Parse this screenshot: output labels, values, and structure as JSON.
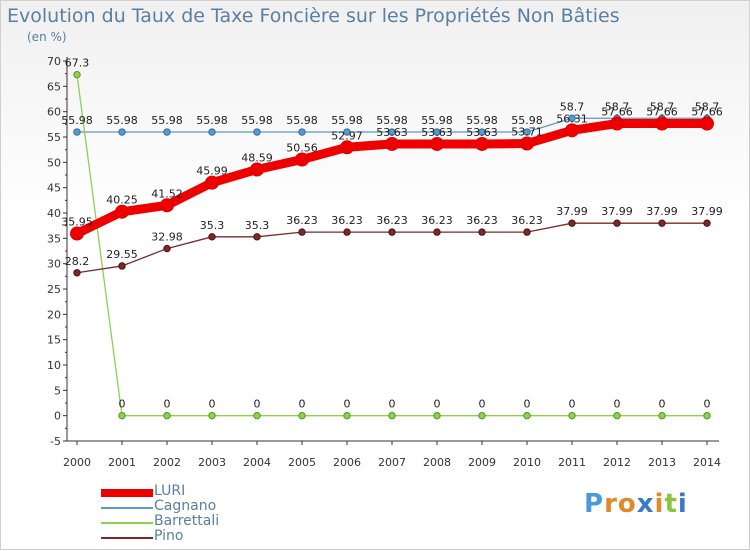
{
  "chart_data": {
    "type": "line",
    "title": "Evolution du Taux de Taxe Foncière sur les Propriétés Non Bâties",
    "ylabel": "(en %)",
    "xlabel": "",
    "ylim": [
      -5,
      70
    ],
    "yticks": [
      -5,
      0,
      5,
      10,
      15,
      20,
      25,
      30,
      35,
      40,
      45,
      50,
      55,
      60,
      65,
      70
    ],
    "ytick_labels": [
      "-5",
      "0",
      "5",
      "10",
      "15",
      "20",
      "25",
      "30",
      "35",
      "40",
      "45",
      "50",
      "55",
      "60",
      "65",
      "70"
    ],
    "categories": [
      "2000",
      "2001",
      "2002",
      "2003",
      "2004",
      "2005",
      "2006",
      "2007",
      "2008",
      "2009",
      "2010",
      "2011",
      "2012",
      "2013",
      "2014"
    ],
    "grid": false,
    "legend_position": "bottom-left",
    "series": [
      {
        "name": "LURI",
        "color": "#ee0000",
        "values": [
          35.95,
          40.25,
          41.52,
          45.99,
          48.59,
          50.56,
          52.97,
          53.63,
          53.63,
          53.63,
          53.71,
          56.31,
          57.66,
          57.66,
          57.66
        ],
        "labels": [
          "35.95",
          "40.25",
          "41.52",
          "45.99",
          "48.59",
          "50.56",
          "52.97",
          "53.63",
          "53.63",
          "53.63",
          "53.71",
          "56.31",
          "57.66",
          "57.66",
          "57.66"
        ]
      },
      {
        "name": "Cagnano",
        "color": "#5b9ac8",
        "values": [
          55.98,
          55.98,
          55.98,
          55.98,
          55.98,
          55.98,
          55.98,
          55.98,
          55.98,
          55.98,
          55.98,
          58.7,
          58.7,
          58.7,
          58.7
        ],
        "labels": [
          "55.98",
          "55.98",
          "55.98",
          "55.98",
          "55.98",
          "55.98",
          "55.98",
          "55.98",
          "55.98",
          "55.98",
          "55.98",
          "58.7",
          "58.7",
          "58.7",
          "58.7"
        ]
      },
      {
        "name": "Barrettali",
        "color": "#8fd14f",
        "values": [
          67.3,
          0,
          0,
          0,
          0,
          0,
          0,
          0,
          0,
          0,
          0,
          0,
          0,
          0,
          0
        ],
        "labels": [
          "67.3",
          "0",
          "0",
          "0",
          "0",
          "0",
          "0",
          "0",
          "0",
          "0",
          "0",
          "0",
          "0",
          "0",
          "0"
        ]
      },
      {
        "name": "Pino",
        "color": "#7a2a2a",
        "values": [
          28.2,
          29.55,
          32.98,
          35.3,
          35.3,
          36.23,
          36.23,
          36.23,
          36.23,
          36.23,
          36.23,
          37.99,
          37.99,
          37.99,
          37.99
        ],
        "labels": [
          "28.2",
          "29.55",
          "32.98",
          "35.3",
          "35.3",
          "36.23",
          "36.23",
          "36.23",
          "36.23",
          "36.23",
          "36.23",
          "37.99",
          "37.99",
          "37.99",
          "37.99"
        ]
      }
    ]
  },
  "brand": {
    "letters": [
      "P",
      "r",
      "o",
      "x",
      "i",
      "t",
      "i"
    ],
    "letter_colors": [
      "#4a9ad8",
      "#e08a2a",
      "#e08a2a",
      "#3a7ac8",
      "#e08a2a",
      "#8cc63f",
      "#3a7ac8"
    ]
  }
}
